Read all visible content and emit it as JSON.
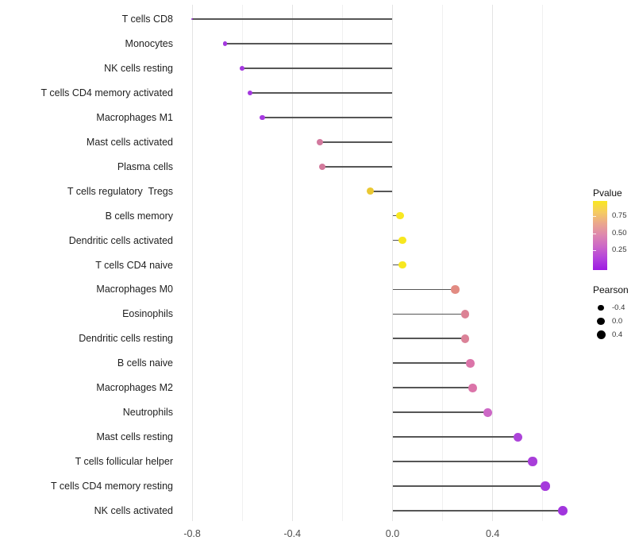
{
  "chart_data": {
    "type": "scatter",
    "subtype": "lollipop",
    "title": "",
    "xlabel": "",
    "ylabel": "",
    "x_ticks": [
      -0.8,
      -0.4,
      0.0,
      0.4
    ],
    "x_tick_labels": [
      "-0.8",
      "-0.4",
      "0.0",
      "0.4"
    ],
    "grid_x": [
      -0.8,
      -0.6,
      -0.4,
      -0.2,
      0.0,
      0.2,
      0.4,
      0.6
    ],
    "xlim": [
      -0.85,
      0.78
    ],
    "baseline_x": 0.0,
    "grid": "vertical only, light gray",
    "legend_position": "right",
    "colors": {
      "stem": "#565656",
      "grid_major": "#e3e3e3",
      "grid_minor": "#f0f0f0",
      "background": "#ffffff"
    },
    "points": [
      {
        "label": "T cells CD8",
        "pearson": -0.8,
        "color": "#9c2fd8"
      },
      {
        "label": "Monocytes",
        "pearson": -0.67,
        "color": "#a438df"
      },
      {
        "label": "NK cells resting",
        "pearson": -0.6,
        "color": "#a438df"
      },
      {
        "label": "T cells CD4 memory activated",
        "pearson": -0.57,
        "color": "#a438df"
      },
      {
        "label": "Macrophages M1",
        "pearson": -0.52,
        "color": "#a73ae1"
      },
      {
        "label": "Mast cells activated",
        "pearson": -0.29,
        "color": "#d2799e"
      },
      {
        "label": "Plasma cells",
        "pearson": -0.28,
        "color": "#d37a9c"
      },
      {
        "label": "T cells regulatory  Tregs",
        "pearson": -0.09,
        "color": "#eac832"
      },
      {
        "label": "B cells memory",
        "pearson": 0.03,
        "color": "#f8e822"
      },
      {
        "label": "Dendritic cells activated",
        "pearson": 0.04,
        "color": "#f7e71f"
      },
      {
        "label": "T cells CD4 naive",
        "pearson": 0.04,
        "color": "#f7e71f"
      },
      {
        "label": "Macrophages M0",
        "pearson": 0.25,
        "color": "#e28b82"
      },
      {
        "label": "Eosinophils",
        "pearson": 0.29,
        "color": "#dc8295"
      },
      {
        "label": "Dendritic cells resting",
        "pearson": 0.29,
        "color": "#db8298"
      },
      {
        "label": "B cells naive",
        "pearson": 0.31,
        "color": "#db74a9"
      },
      {
        "label": "Macrophages M2",
        "pearson": 0.32,
        "color": "#db74a9"
      },
      {
        "label": "Neutrophils",
        "pearson": 0.38,
        "color": "#cd68c6"
      },
      {
        "label": "Mast cells resting",
        "pearson": 0.5,
        "color": "#ac44d9"
      },
      {
        "label": "T cells follicular helper",
        "pearson": 0.56,
        "color": "#a83ed9"
      },
      {
        "label": "T cells CD4 memory resting",
        "pearson": 0.61,
        "color": "#a539dc"
      },
      {
        "label": "NK cells activated",
        "pearson": 0.68,
        "color": "#a135dd"
      }
    ],
    "legends": {
      "color": {
        "title": "Pvalue",
        "range": [
          0.0,
          1.0
        ],
        "ticks": [
          {
            "label": "0.75",
            "frac_from_top": 0.218
          },
          {
            "label": "0.50",
            "frac_from_top": 0.471
          },
          {
            "label": "0.25",
            "frac_from_top": 0.716
          }
        ],
        "gradient_top_to_bottom": [
          "#f9e721",
          "#f5cb62",
          "#eaa58f",
          "#dd86b0",
          "#cb66c8",
          "#b342dc",
          "#9d1be2"
        ]
      },
      "size": {
        "title": "Pearson",
        "entries": [
          {
            "label": "-0.4",
            "diameter": 7.3
          },
          {
            "label": "0.0",
            "diameter": 9.3
          },
          {
            "label": "0.4",
            "diameter": 11.0
          }
        ]
      }
    }
  }
}
